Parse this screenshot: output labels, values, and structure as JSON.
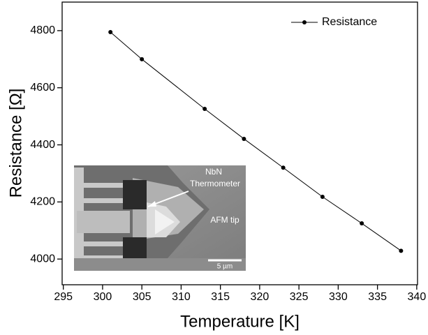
{
  "chart_data": {
    "type": "line",
    "x_label": "Temperature [K]",
    "y_label": "Resistance [Ω]",
    "xlim": [
      294.85,
      340.1
    ],
    "xticks": [
      295,
      300,
      305,
      310,
      315,
      320,
      325,
      330,
      335,
      340
    ],
    "ylim": [
      3910,
      4900
    ],
    "yticks": [
      4000,
      4200,
      4400,
      4600,
      4800
    ],
    "x": [
      301,
      305,
      313,
      318,
      323,
      328,
      333,
      338
    ],
    "series": [
      {
        "name": "Resistance",
        "color": "#000000",
        "values": [
          4795,
          4700,
          4526,
          4421,
          4320,
          4218,
          4125,
          4029
        ]
      }
    ],
    "legend": "top-right",
    "inset": {
      "labels": [
        "NbN",
        "Thermometer",
        "AFM tip"
      ],
      "scale_bar": "5 µm"
    }
  }
}
